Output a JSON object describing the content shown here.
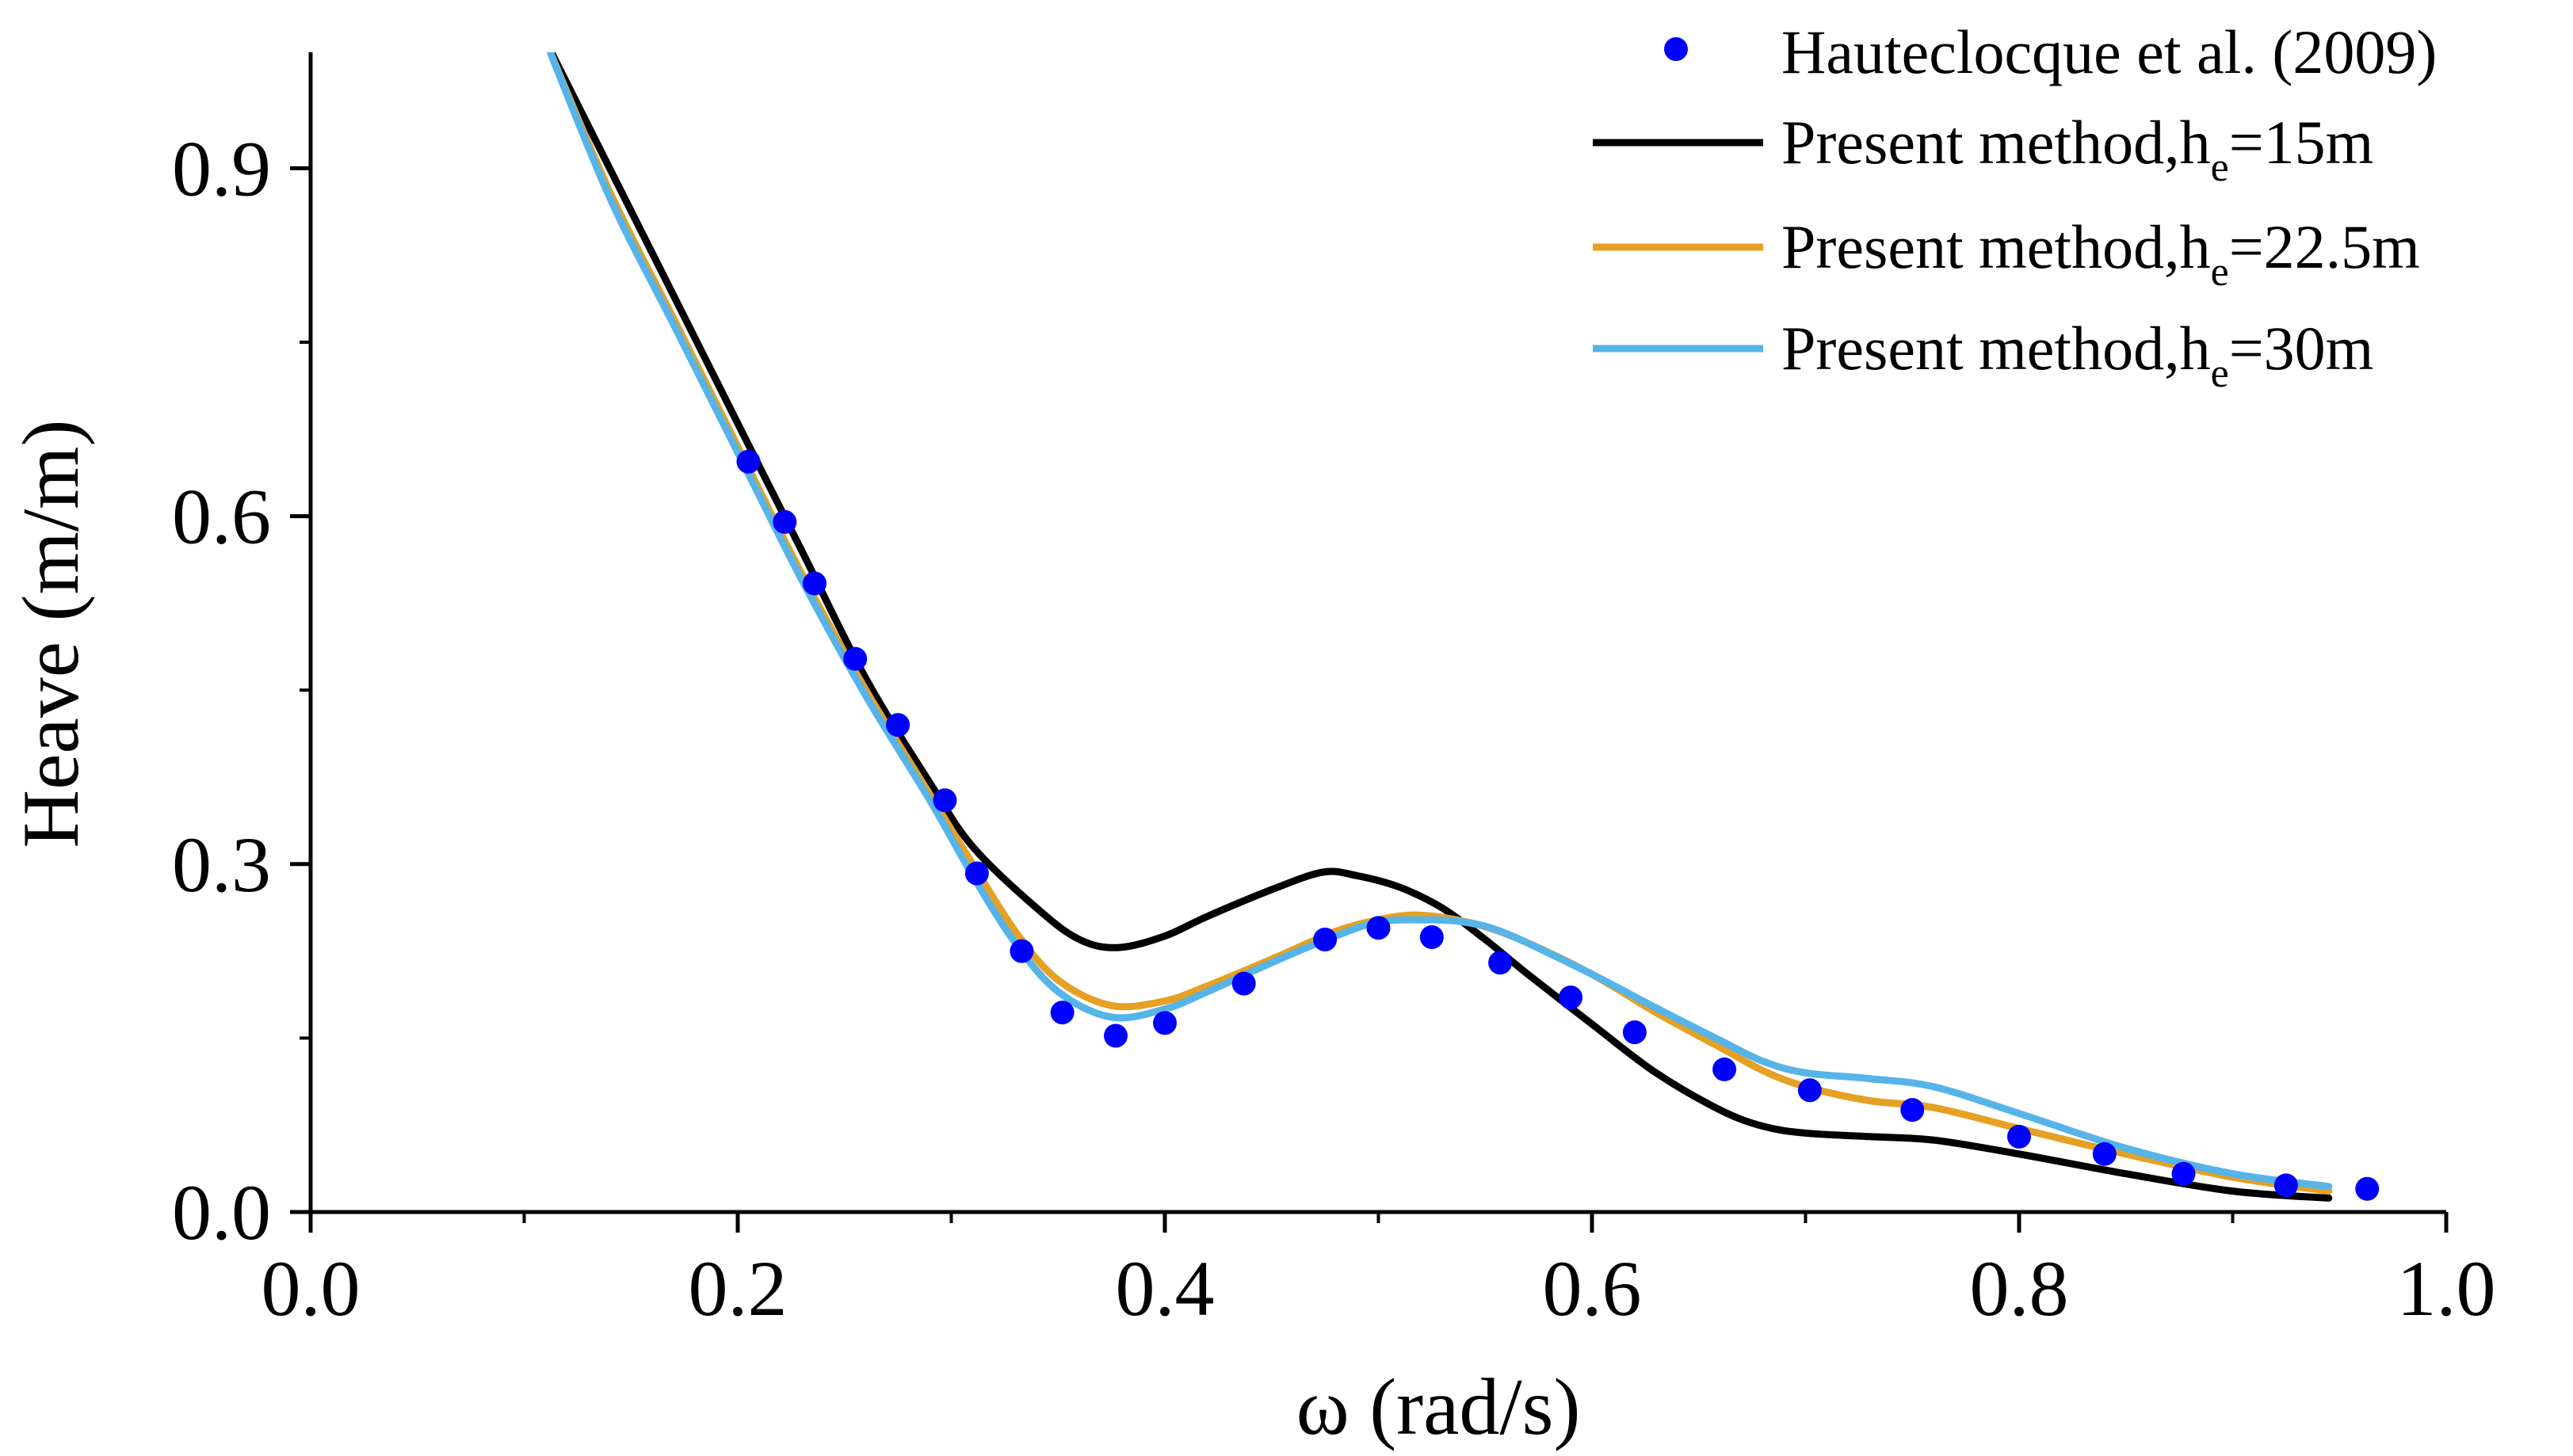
{
  "chart_data": {
    "type": "line",
    "title": "",
    "xlabel": "ω (rad/s)",
    "ylabel": "Heave (m/m)",
    "xlim": [
      0.0,
      1.0
    ],
    "ylim": [
      0.0,
      1.0
    ],
    "x_ticks": [
      "0.0",
      "0.2",
      "0.4",
      "0.6",
      "0.8",
      "1.0"
    ],
    "x_tick_values": [
      0.0,
      0.2,
      0.4,
      0.6,
      0.8,
      1.0
    ],
    "x_minor_tick_values": [
      0.1,
      0.3,
      0.5,
      0.7,
      0.9
    ],
    "y_ticks": [
      "0.0",
      "0.3",
      "0.6",
      "0.9"
    ],
    "y_tick_values": [
      0.0,
      0.3,
      0.6,
      0.9
    ],
    "y_minor_tick_values": [
      0.15,
      0.45,
      0.75
    ],
    "legend_position": "top-right",
    "scatter": {
      "name": "Hauteclocque et al. (2009)",
      "color": "#0000ff",
      "x": [
        0.205,
        0.222,
        0.236,
        0.255,
        0.275,
        0.297,
        0.312,
        0.333,
        0.352,
        0.377,
        0.4,
        0.437,
        0.475,
        0.5,
        0.525,
        0.557,
        0.59,
        0.62,
        0.662,
        0.702,
        0.75,
        0.8,
        0.84,
        0.877,
        0.925,
        0.963
      ],
      "y": [
        0.647,
        0.595,
        0.542,
        0.477,
        0.42,
        0.355,
        0.292,
        0.225,
        0.172,
        0.152,
        0.163,
        0.197,
        0.235,
        0.245,
        0.237,
        0.215,
        0.185,
        0.155,
        0.123,
        0.105,
        0.088,
        0.065,
        0.05,
        0.033,
        0.023,
        0.02
      ]
    },
    "series": [
      {
        "name_prefix": "Present method,h",
        "name_sub": "e",
        "name_suffix": "=15m",
        "color": "#000000",
        "x": [
          0.11,
          0.14,
          0.17,
          0.2,
          0.23,
          0.26,
          0.29,
          0.31,
          0.34,
          0.36,
          0.378,
          0.4,
          0.42,
          0.45,
          0.474,
          0.49,
          0.51,
          0.53,
          0.55,
          0.57,
          0.6,
          0.63,
          0.66,
          0.68,
          0.7,
          0.73,
          0.76,
          0.8,
          0.85,
          0.9,
          0.945
        ],
        "y": [
          1.01,
          0.9,
          0.79,
          0.68,
          0.57,
          0.46,
          0.37,
          0.315,
          0.262,
          0.235,
          0.228,
          0.238,
          0.255,
          0.278,
          0.293,
          0.29,
          0.28,
          0.262,
          0.235,
          0.205,
          0.162,
          0.12,
          0.088,
          0.074,
          0.068,
          0.065,
          0.062,
          0.05,
          0.033,
          0.018,
          0.012
        ]
      },
      {
        "name_prefix": "Present method,h",
        "name_sub": "e",
        "name_suffix": "=22.5m",
        "color": "#e6a023",
        "x": [
          0.11,
          0.14,
          0.17,
          0.2,
          0.23,
          0.26,
          0.29,
          0.31,
          0.33,
          0.35,
          0.375,
          0.4,
          0.42,
          0.45,
          0.48,
          0.5,
          0.515,
          0.53,
          0.55,
          0.57,
          0.6,
          0.63,
          0.66,
          0.68,
          0.7,
          0.73,
          0.76,
          0.8,
          0.85,
          0.9,
          0.945
        ],
        "y": [
          1.01,
          0.88,
          0.77,
          0.66,
          0.55,
          0.45,
          0.36,
          0.3,
          0.242,
          0.2,
          0.178,
          0.182,
          0.195,
          0.218,
          0.242,
          0.252,
          0.256,
          0.254,
          0.246,
          0.232,
          0.205,
          0.172,
          0.142,
          0.122,
          0.108,
          0.096,
          0.09,
          0.072,
          0.05,
          0.03,
          0.018
        ]
      },
      {
        "name_prefix": "Present method,h",
        "name_sub": "e",
        "name_suffix": "=30m",
        "color": "#56b4e9",
        "x": [
          0.11,
          0.14,
          0.17,
          0.2,
          0.23,
          0.26,
          0.29,
          0.31,
          0.33,
          0.35,
          0.375,
          0.4,
          0.42,
          0.45,
          0.48,
          0.5,
          0.52,
          0.54,
          0.56,
          0.6,
          0.63,
          0.66,
          0.68,
          0.7,
          0.73,
          0.76,
          0.8,
          0.85,
          0.9,
          0.945
        ],
        "y": [
          1.01,
          0.875,
          0.765,
          0.655,
          0.545,
          0.445,
          0.355,
          0.29,
          0.232,
          0.19,
          0.168,
          0.175,
          0.19,
          0.215,
          0.238,
          0.25,
          0.252,
          0.25,
          0.24,
          0.205,
          0.176,
          0.148,
          0.13,
          0.12,
          0.115,
          0.108,
          0.085,
          0.055,
          0.033,
          0.022
        ]
      }
    ]
  }
}
